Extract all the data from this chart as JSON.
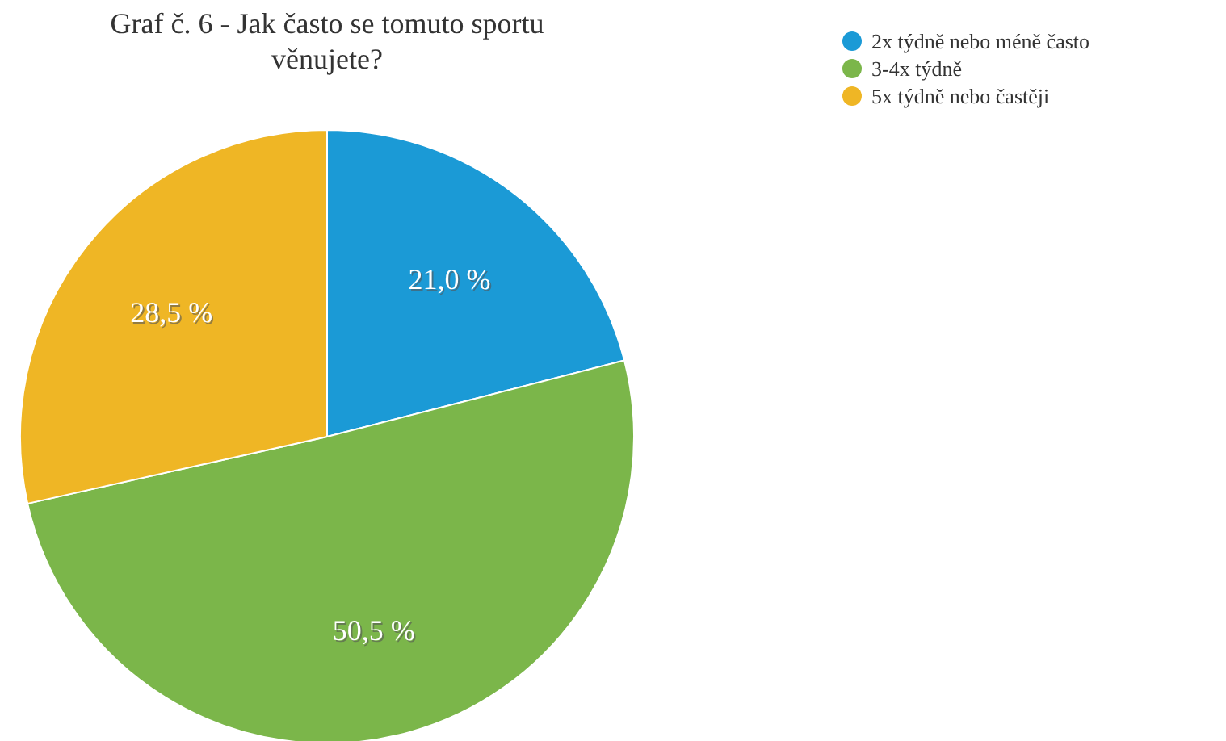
{
  "chart_data": {
    "type": "pie",
    "title": "Graf č. 6 - Jak často se tomuto sportu věnujete?",
    "categories": [
      "2x týdně nebo méně často",
      "3-4x týdně",
      "5x týdně nebo častěji"
    ],
    "values": [
      21.0,
      50.5,
      28.5
    ],
    "colors": [
      "#1b9ad6",
      "#7bb64a",
      "#efb625"
    ],
    "value_labels": [
      "21,0 %",
      "50,5 %",
      "28,5 %"
    ],
    "legend": "top right"
  }
}
